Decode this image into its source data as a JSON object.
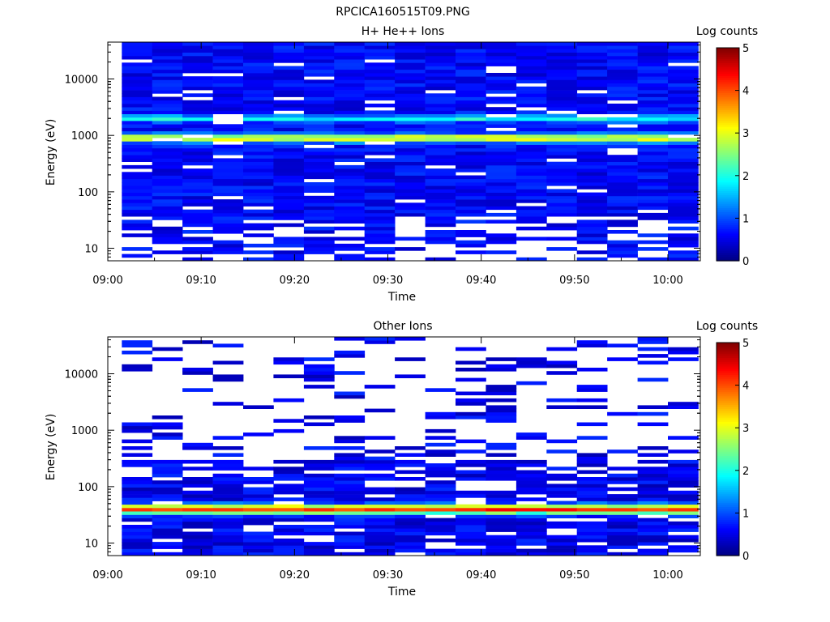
{
  "figure_title": "RPCICA160515T09.PNG",
  "chart_data": [
    {
      "type": "heatmap",
      "title": "H+ He++ Ions",
      "xlabel": "Time",
      "ylabel": "Energy (eV)",
      "x_ticks": [
        "09:00",
        "09:10",
        "09:20",
        "09:30",
        "09:40",
        "09:50",
        "10:00"
      ],
      "x_range": [
        "09:00",
        "10:02"
      ],
      "y_scale": "log",
      "y_ticks": [
        10,
        100,
        1000,
        10000
      ],
      "y_tick_labels": [
        "10",
        "100",
        "1000",
        "10000"
      ],
      "y_range": [
        6,
        45000
      ],
      "colorbar": {
        "label": "Log counts",
        "range": [
          0,
          5
        ],
        "ticks": [
          "0",
          "1",
          "2",
          "3",
          "4",
          "5"
        ]
      },
      "band_peak_energy_eV": 900,
      "band_peak_log_counts": 2.6
    },
    {
      "type": "heatmap",
      "title": "Other Ions",
      "xlabel": "Time",
      "ylabel": "Energy (eV)",
      "x_ticks": [
        "09:00",
        "09:10",
        "09:20",
        "09:30",
        "09:40",
        "09:50",
        "10:00"
      ],
      "x_range": [
        "09:00",
        "10:02"
      ],
      "y_scale": "log",
      "y_ticks": [
        10,
        100,
        1000,
        10000
      ],
      "y_tick_labels": [
        "10",
        "100",
        "1000",
        "10000"
      ],
      "y_range": [
        6,
        45000
      ],
      "colorbar": {
        "label": "Log counts",
        "range": [
          0,
          5
        ],
        "ticks": [
          "0",
          "1",
          "2",
          "3",
          "4",
          "5"
        ]
      },
      "band_peak_energy_eV": 40,
      "band_peak_log_counts": 3.6
    }
  ]
}
